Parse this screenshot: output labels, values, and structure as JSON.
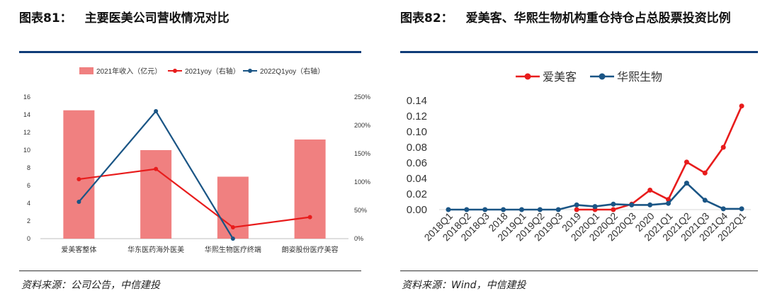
{
  "left_figure": {
    "number": "图表81：",
    "title": "主要医美公司营收情况对比",
    "source": "资料来源：公司公告，中信建投"
  },
  "right_figure": {
    "number": "图表82：",
    "title": "爱美客、华熙生物机构重仓持仓占总股票投资比例",
    "source": "资料来源：Wind，中信建投"
  },
  "chart_data": [
    {
      "type": "bar",
      "categories": [
        "爱美客整体",
        "华东医药海外医美",
        "华熙生物医疗终端",
        "朗姿股份医疗美容"
      ],
      "series": [
        {
          "name": "2021年收入（亿元）",
          "kind": "bar",
          "axis": "left",
          "color": "#f08080",
          "values": [
            14.5,
            10.0,
            7.0,
            11.2
          ]
        },
        {
          "name": "2021yoy（右轴）",
          "kind": "line",
          "axis": "right",
          "color": "#e81c1c",
          "values": [
            105,
            123,
            20,
            38
          ]
        },
        {
          "name": "2022Q1yoy（右轴）",
          "kind": "line",
          "axis": "right",
          "color": "#1a5585",
          "values": [
            65,
            225,
            0,
            null
          ]
        }
      ],
      "ylim": [
        0,
        16
      ],
      "yticks": [
        "0",
        "2",
        "4",
        "6",
        "8",
        "10",
        "12",
        "14",
        "16"
      ],
      "y2lim": [
        0,
        250
      ],
      "y2ticks": [
        "0%",
        "50%",
        "100%",
        "150%",
        "200%",
        "250%"
      ],
      "legend_position": "top",
      "grid": false
    },
    {
      "type": "line",
      "categories": [
        "2018Q1",
        "2018Q2",
        "2018Q3",
        "2018",
        "2019Q1",
        "2019Q2",
        "2019Q3",
        "2019",
        "2020Q1",
        "2020Q2",
        "2020Q3",
        "2020",
        "2021Q1",
        "2021Q2",
        "2021Q3",
        "2021Q4",
        "2022Q1"
      ],
      "series": [
        {
          "name": "爱美客",
          "color": "#e81c1c",
          "values": [
            null,
            null,
            null,
            null,
            null,
            null,
            null,
            0.0,
            0.0,
            0.0,
            0.007,
            0.025,
            0.013,
            0.061,
            0.047,
            0.08,
            0.133
          ]
        },
        {
          "name": "华熙生物",
          "color": "#1a5585",
          "values": [
            0.0,
            0.0,
            0.0,
            0.0,
            0.0,
            0.0,
            0.0,
            0.006,
            0.004,
            0.007,
            0.006,
            0.006,
            0.008,
            0.034,
            0.012,
            0.001,
            0.001
          ]
        }
      ],
      "ylim": [
        0,
        0.14
      ],
      "yticks": [
        "0.00",
        "0.02",
        "0.04",
        "0.06",
        "0.08",
        "0.10",
        "0.12",
        "0.14"
      ],
      "legend_position": "top",
      "grid": false
    }
  ]
}
